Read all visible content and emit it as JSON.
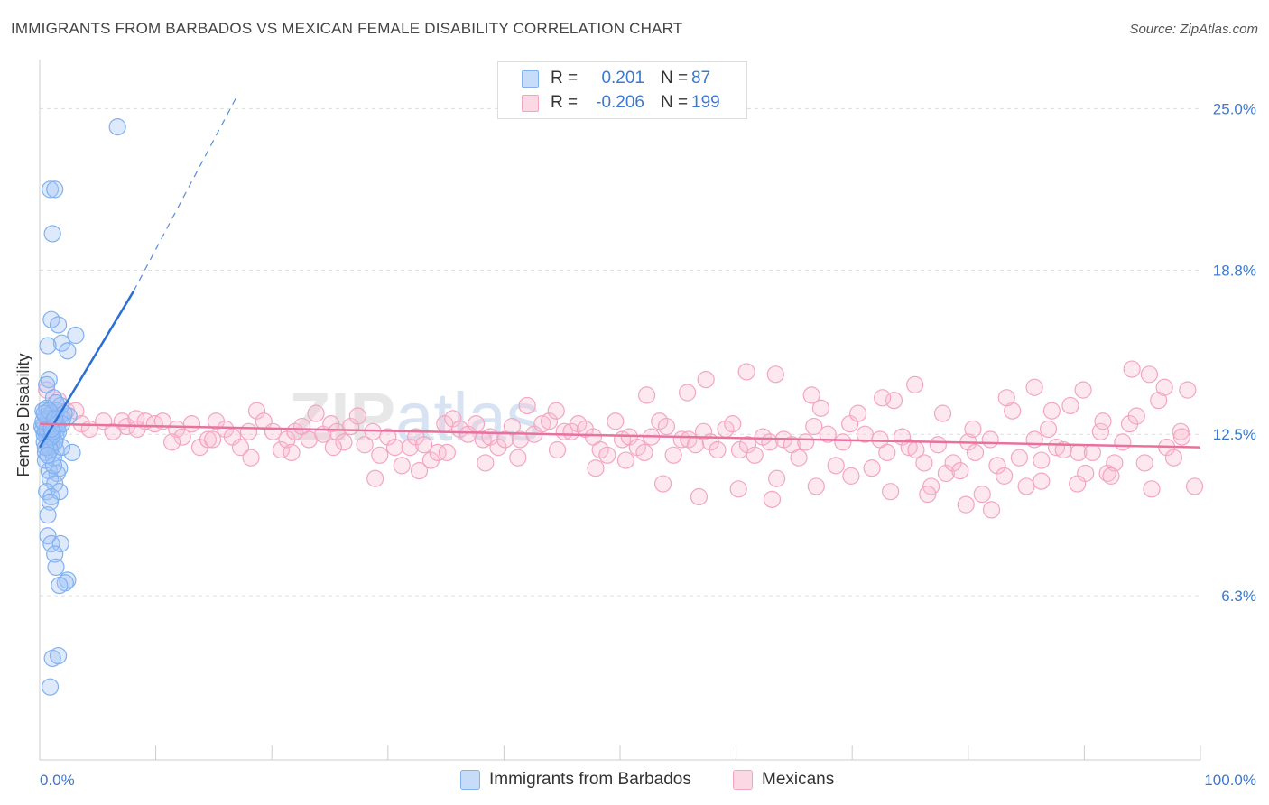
{
  "title": "IMMIGRANTS FROM BARBADOS VS MEXICAN FEMALE DISABILITY CORRELATION CHART",
  "source": "Source: ZipAtlas.com",
  "colors": {
    "blue": "#7fb0f0",
    "blue_fill": "rgba(160,196,245,0.35)",
    "blue_line": "#2a6fd6",
    "pink": "#f3a5c0",
    "pink_fill": "rgba(248,190,210,0.35)",
    "pink_line": "#e8719e",
    "tick_label": "#3b78d1",
    "grid": "#dddddd"
  },
  "stats": {
    "rows": [
      {
        "r_label": "R =",
        "r_value": "0.201",
        "n_label": "N =",
        "n_value": "87"
      },
      {
        "r_label": "R =",
        "r_value": "-0.206",
        "n_label": "N =",
        "n_value": "199"
      }
    ]
  },
  "legend": {
    "items": [
      {
        "label": "Immigrants from Barbados"
      },
      {
        "label": "Mexicans"
      }
    ]
  },
  "chart_data": {
    "type": "scatter",
    "xlabel": "",
    "ylabel": "Female Disability",
    "xlim": [
      0,
      100
    ],
    "ylim": [
      0,
      26.4
    ],
    "x_tick_labels": [
      "0.0%",
      "100.0%"
    ],
    "y_ticks": [
      6.3,
      12.5,
      18.8,
      25.0
    ],
    "y_tick_labels": [
      "6.3%",
      "12.5%",
      "18.8%",
      "25.0%"
    ],
    "watermark": "ZIPatlas",
    "series": [
      {
        "name": "Immigrants from Barbados",
        "color": "blue",
        "trend": {
          "x": [
            0,
            8.1
          ],
          "y": [
            12.0,
            18.0
          ],
          "dashed_to": {
            "x": 16.9,
            "y": 25.4
          }
        },
        "points": [
          [
            6.7,
            24.3
          ],
          [
            0.9,
            21.9
          ],
          [
            1.3,
            21.9
          ],
          [
            1.1,
            20.2
          ],
          [
            1.0,
            16.9
          ],
          [
            1.6,
            16.7
          ],
          [
            3.1,
            16.3
          ],
          [
            1.9,
            16.0
          ],
          [
            0.7,
            15.9
          ],
          [
            2.4,
            15.7
          ],
          [
            0.8,
            14.6
          ],
          [
            0.6,
            14.4
          ],
          [
            1.2,
            13.9
          ],
          [
            1.5,
            13.4
          ],
          [
            0.5,
            13.2
          ],
          [
            0.9,
            13.2
          ],
          [
            1.7,
            13.2
          ],
          [
            2.0,
            13.1
          ],
          [
            2.5,
            13.2
          ],
          [
            0.4,
            12.9
          ],
          [
            0.7,
            12.9
          ],
          [
            1.3,
            12.9
          ],
          [
            0.3,
            12.7
          ],
          [
            0.9,
            12.7
          ],
          [
            1.5,
            12.7
          ],
          [
            0.5,
            12.6
          ],
          [
            1.1,
            12.5
          ],
          [
            0.6,
            12.4
          ],
          [
            1.4,
            12.4
          ],
          [
            0.8,
            12.3
          ],
          [
            0.4,
            12.2
          ],
          [
            1.0,
            12.1
          ],
          [
            1.4,
            11.9
          ],
          [
            0.5,
            11.8
          ],
          [
            2.8,
            11.8
          ],
          [
            1.2,
            11.6
          ],
          [
            1.7,
            11.2
          ],
          [
            0.8,
            11.1
          ],
          [
            1.5,
            11.0
          ],
          [
            0.9,
            10.8
          ],
          [
            1.3,
            10.6
          ],
          [
            0.6,
            10.3
          ],
          [
            1.0,
            10.1
          ],
          [
            1.7,
            10.3
          ],
          [
            0.9,
            9.9
          ],
          [
            0.7,
            9.4
          ],
          [
            0.7,
            8.6
          ],
          [
            1.0,
            8.3
          ],
          [
            1.8,
            8.3
          ],
          [
            1.3,
            7.9
          ],
          [
            1.4,
            7.4
          ],
          [
            2.4,
            6.9
          ],
          [
            2.2,
            6.8
          ],
          [
            1.7,
            6.7
          ],
          [
            1.1,
            3.9
          ],
          [
            1.6,
            4.0
          ],
          [
            0.9,
            2.8
          ],
          [
            1.9,
            12.0
          ],
          [
            0.3,
            13.4
          ],
          [
            0.6,
            13.5
          ],
          [
            1.0,
            13.3
          ],
          [
            1.2,
            12.8
          ],
          [
            0.4,
            12.5
          ],
          [
            1.6,
            12.6
          ],
          [
            0.8,
            12.0
          ],
          [
            1.1,
            13.0
          ],
          [
            0.5,
            11.5
          ],
          [
            1.3,
            12.2
          ],
          [
            0.7,
            13.1
          ],
          [
            1.8,
            13.6
          ],
          [
            0.2,
            12.8
          ],
          [
            0.9,
            11.9
          ],
          [
            1.4,
            13.7
          ],
          [
            0.6,
            12.7
          ],
          [
            1.0,
            12.4
          ],
          [
            1.2,
            11.3
          ],
          [
            0.3,
            13.0
          ],
          [
            1.5,
            12.9
          ],
          [
            0.8,
            13.4
          ],
          [
            2.1,
            13.3
          ],
          [
            0.5,
            12.0
          ],
          [
            1.1,
            12.6
          ],
          [
            0.7,
            11.7
          ],
          [
            1.9,
            12.9
          ],
          [
            0.4,
            13.3
          ],
          [
            1.3,
            13.1
          ],
          [
            1.0,
            12.7
          ]
        ]
      },
      {
        "name": "Mexicans",
        "color": "pink",
        "trend": {
          "x": [
            0,
            100
          ],
          "y": [
            12.9,
            12.0
          ]
        },
        "points": [
          [
            0.6,
            14.2
          ],
          [
            1.2,
            13.3
          ],
          [
            1.6,
            13.8
          ],
          [
            2.3,
            13.4
          ],
          [
            3.1,
            13.4
          ],
          [
            3.6,
            12.9
          ],
          [
            4.3,
            12.7
          ],
          [
            5.5,
            13.0
          ],
          [
            6.3,
            12.6
          ],
          [
            7.1,
            13.0
          ],
          [
            7.5,
            12.8
          ],
          [
            8.4,
            12.7
          ],
          [
            9.1,
            13.0
          ],
          [
            9.9,
            12.9
          ],
          [
            10.6,
            13.0
          ],
          [
            11.8,
            12.7
          ],
          [
            12.3,
            12.4
          ],
          [
            13.1,
            12.9
          ],
          [
            13.8,
            12.0
          ],
          [
            14.5,
            12.3
          ],
          [
            15.2,
            13.0
          ],
          [
            16.0,
            12.7
          ],
          [
            16.6,
            12.4
          ],
          [
            17.3,
            12.0
          ],
          [
            18.0,
            12.6
          ],
          [
            18.7,
            13.4
          ],
          [
            19.3,
            13.0
          ],
          [
            20.1,
            12.6
          ],
          [
            20.8,
            11.9
          ],
          [
            21.3,
            12.3
          ],
          [
            22.0,
            12.6
          ],
          [
            22.6,
            12.8
          ],
          [
            23.2,
            12.3
          ],
          [
            23.8,
            13.3
          ],
          [
            24.4,
            12.5
          ],
          [
            25.1,
            12.9
          ],
          [
            25.6,
            12.6
          ],
          [
            26.2,
            12.2
          ],
          [
            26.8,
            12.8
          ],
          [
            27.4,
            13.2
          ],
          [
            28.0,
            12.1
          ],
          [
            28.7,
            12.6
          ],
          [
            29.3,
            11.7
          ],
          [
            30.0,
            12.4
          ],
          [
            30.6,
            12.0
          ],
          [
            31.2,
            11.3
          ],
          [
            31.9,
            12.0
          ],
          [
            32.4,
            12.4
          ],
          [
            33.1,
            12.1
          ],
          [
            33.7,
            11.5
          ],
          [
            34.3,
            11.8
          ],
          [
            34.9,
            12.9
          ],
          [
            35.6,
            13.1
          ],
          [
            36.2,
            12.7
          ],
          [
            36.9,
            12.5
          ],
          [
            37.6,
            12.9
          ],
          [
            38.2,
            12.3
          ],
          [
            38.8,
            12.4
          ],
          [
            39.5,
            12.0
          ],
          [
            40.1,
            12.3
          ],
          [
            40.7,
            12.8
          ],
          [
            41.4,
            12.3
          ],
          [
            42.0,
            13.6
          ],
          [
            42.6,
            12.5
          ],
          [
            43.3,
            12.9
          ],
          [
            43.9,
            13.0
          ],
          [
            44.5,
            13.4
          ],
          [
            45.2,
            12.6
          ],
          [
            45.8,
            12.6
          ],
          [
            46.4,
            12.9
          ],
          [
            47.0,
            12.7
          ],
          [
            47.7,
            12.4
          ],
          [
            48.3,
            11.9
          ],
          [
            48.9,
            11.7
          ],
          [
            49.6,
            13.0
          ],
          [
            50.2,
            12.3
          ],
          [
            50.8,
            12.4
          ],
          [
            51.5,
            12.0
          ],
          [
            52.1,
            11.8
          ],
          [
            52.7,
            12.4
          ],
          [
            53.4,
            13.0
          ],
          [
            54.0,
            12.8
          ],
          [
            54.6,
            11.7
          ],
          [
            55.3,
            12.3
          ],
          [
            55.9,
            12.3
          ],
          [
            56.5,
            12.1
          ],
          [
            57.2,
            12.6
          ],
          [
            57.8,
            12.2
          ],
          [
            58.4,
            11.9
          ],
          [
            59.1,
            12.7
          ],
          [
            59.7,
            12.9
          ],
          [
            60.3,
            11.9
          ],
          [
            61.0,
            12.1
          ],
          [
            61.6,
            11.7
          ],
          [
            62.3,
            12.4
          ],
          [
            62.9,
            12.2
          ],
          [
            63.5,
            10.8
          ],
          [
            64.1,
            12.3
          ],
          [
            64.8,
            12.1
          ],
          [
            65.4,
            11.6
          ],
          [
            66.0,
            12.2
          ],
          [
            66.7,
            12.8
          ],
          [
            67.3,
            13.5
          ],
          [
            67.9,
            12.5
          ],
          [
            68.6,
            11.3
          ],
          [
            69.2,
            12.2
          ],
          [
            69.8,
            12.9
          ],
          [
            70.5,
            13.3
          ],
          [
            71.1,
            12.5
          ],
          [
            71.7,
            11.2
          ],
          [
            72.4,
            12.3
          ],
          [
            73.0,
            11.8
          ],
          [
            73.6,
            13.8
          ],
          [
            74.3,
            12.4
          ],
          [
            74.9,
            12.0
          ],
          [
            75.5,
            11.9
          ],
          [
            76.2,
            11.4
          ],
          [
            76.8,
            10.5
          ],
          [
            77.4,
            12.1
          ],
          [
            78.1,
            11.0
          ],
          [
            78.7,
            11.4
          ],
          [
            79.3,
            11.1
          ],
          [
            80.0,
            12.2
          ],
          [
            80.6,
            11.8
          ],
          [
            81.2,
            10.2
          ],
          [
            81.9,
            12.3
          ],
          [
            82.5,
            11.3
          ],
          [
            83.1,
            10.9
          ],
          [
            83.8,
            13.4
          ],
          [
            84.4,
            11.6
          ],
          [
            85.0,
            10.5
          ],
          [
            85.7,
            12.3
          ],
          [
            86.3,
            11.5
          ],
          [
            86.9,
            12.7
          ],
          [
            87.6,
            12.0
          ],
          [
            88.2,
            11.9
          ],
          [
            88.8,
            13.6
          ],
          [
            89.5,
            11.8
          ],
          [
            90.1,
            11.0
          ],
          [
            90.7,
            11.8
          ],
          [
            91.4,
            12.6
          ],
          [
            92.0,
            11.0
          ],
          [
            92.6,
            11.4
          ],
          [
            93.3,
            12.2
          ],
          [
            93.9,
            12.9
          ],
          [
            94.5,
            13.2
          ],
          [
            95.2,
            11.4
          ],
          [
            95.8,
            10.4
          ],
          [
            96.4,
            13.8
          ],
          [
            97.1,
            12.0
          ],
          [
            97.7,
            11.6
          ],
          [
            98.3,
            12.6
          ],
          [
            98.9,
            14.2
          ],
          [
            99.5,
            10.5
          ],
          [
            52.3,
            14.0
          ],
          [
            55.8,
            14.1
          ],
          [
            57.4,
            14.6
          ],
          [
            60.9,
            14.9
          ],
          [
            63.4,
            14.8
          ],
          [
            66.5,
            14.0
          ],
          [
            72.6,
            13.9
          ],
          [
            75.4,
            14.4
          ],
          [
            77.8,
            13.3
          ],
          [
            80.4,
            12.7
          ],
          [
            83.3,
            13.9
          ],
          [
            85.7,
            14.3
          ],
          [
            87.2,
            13.4
          ],
          [
            89.9,
            14.2
          ],
          [
            91.6,
            13.0
          ],
          [
            94.1,
            15.0
          ],
          [
            95.6,
            14.8
          ],
          [
            96.9,
            14.3
          ],
          [
            98.4,
            12.4
          ],
          [
            92.3,
            10.9
          ],
          [
            89.4,
            10.6
          ],
          [
            86.3,
            10.7
          ],
          [
            82.0,
            9.6
          ],
          [
            79.8,
            9.8
          ],
          [
            76.5,
            10.2
          ],
          [
            73.3,
            10.3
          ],
          [
            69.9,
            10.9
          ],
          [
            66.9,
            10.5
          ],
          [
            63.1,
            10.0
          ],
          [
            60.2,
            10.4
          ],
          [
            56.8,
            10.1
          ],
          [
            53.7,
            10.6
          ],
          [
            50.5,
            11.5
          ],
          [
            47.9,
            11.2
          ],
          [
            44.6,
            11.9
          ],
          [
            41.2,
            11.6
          ],
          [
            38.4,
            11.4
          ],
          [
            35.1,
            11.8
          ],
          [
            32.7,
            11.1
          ],
          [
            28.9,
            10.8
          ],
          [
            25.3,
            12.0
          ],
          [
            21.7,
            11.8
          ],
          [
            18.2,
            11.6
          ],
          [
            14.9,
            12.3
          ],
          [
            11.4,
            12.2
          ],
          [
            8.3,
            13.1
          ]
        ]
      }
    ]
  }
}
